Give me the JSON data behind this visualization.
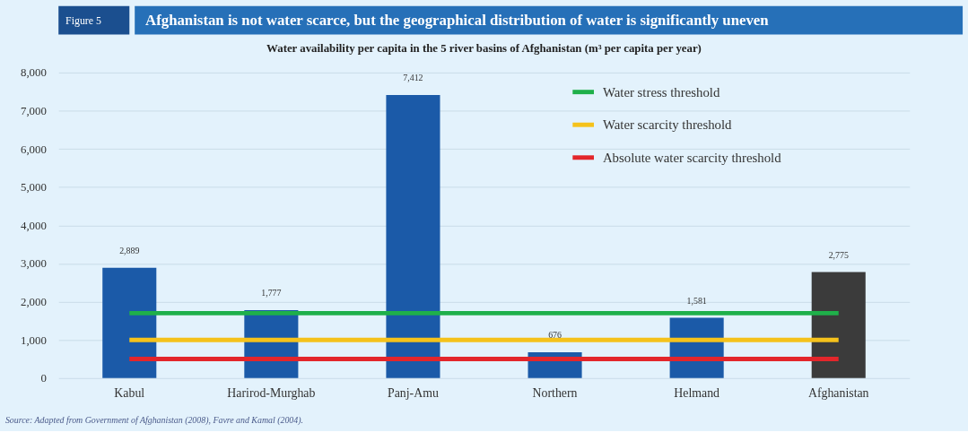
{
  "chart_data": {
    "type": "bar",
    "title": "Afghanistan is not water scarce, but the geographical distribution of water is significantly uneven",
    "subtitle": "Water availability per capita in the 5 river basins of Afghanistan (m³ per capita per year)",
    "categories": [
      "Kabul",
      "Harirod-Murghab",
      "Panj-Amu",
      "Northern",
      "Helmand",
      "Afghanistan"
    ],
    "values": [
      2889,
      1777,
      7412,
      676,
      1581,
      2775
    ],
    "value_labels": [
      "2,889",
      "1,777",
      "7,412",
      "676",
      "1,581",
      "2,775"
    ],
    "colors": [
      "#1b5aa8",
      "#1b5aa8",
      "#1b5aa8",
      "#1b5aa8",
      "#1b5aa8",
      "#3b3b3b"
    ],
    "ylim": [
      0,
      8000
    ],
    "yticks": [
      0,
      {
        "value": 1000,
        "label": "1,000"
      },
      {
        "value": 2000,
        "label": "2,000"
      },
      {
        "value": 3000,
        "label": "3,000"
      },
      {
        "value": 4000,
        "label": "4,000"
      },
      {
        "value": 5000,
        "label": "5,000"
      },
      {
        "value": 6000,
        "label": "6,000"
      },
      {
        "value": 7000,
        "label": "7,000"
      },
      {
        "value": 8000,
        "label": "8,000"
      }
    ],
    "grid": "y",
    "legend": "top right",
    "ref_lines": [
      {
        "axis": "y",
        "value": 1700,
        "label": "Water stress threshold",
        "color": "#1fb04a"
      },
      {
        "axis": "y",
        "value": 1000,
        "label": "Water scarcity threshold",
        "color": "#f5c21b"
      },
      {
        "axis": "y",
        "value": 500,
        "label": "Absolute water scarcity threshold",
        "color": "#e3262b"
      }
    ],
    "annotations": [
      "Figure 5",
      "Source: Adapted from Government of Afghanistan (2008), Favre and Kamal (2004)."
    ]
  }
}
